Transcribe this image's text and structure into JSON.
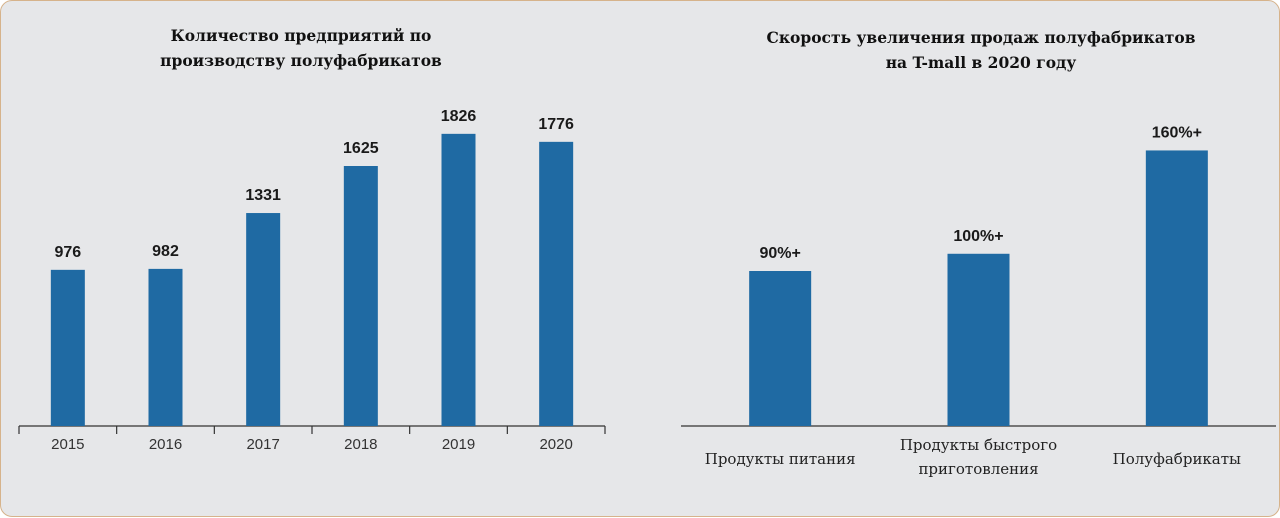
{
  "chart_data": [
    {
      "type": "bar",
      "title": "Количество предприятий по\nпроизводству полуфабрикатов",
      "categories": [
        "2015",
        "2016",
        "2017",
        "2018",
        "2019",
        "2020"
      ],
      "values": [
        976,
        982,
        1331,
        1625,
        1826,
        1776
      ],
      "value_labels": [
        "976",
        "982",
        "1331",
        "1625",
        "1826",
        "1776"
      ],
      "ylim": [
        0,
        2000
      ],
      "grid": false,
      "color": "#1f6aa3"
    },
    {
      "type": "bar",
      "title": "Скорость увеличения продаж полуфабрикатов\nна T-mall в 2020 году",
      "categories": [
        "Продукты питания",
        "Продукты быстрого\nприготовления",
        "Полуфабрикаты"
      ],
      "values": [
        90,
        100,
        160
      ],
      "value_labels": [
        "90%+",
        "100%+",
        "160%+"
      ],
      "ylim": [
        0,
        180
      ],
      "grid": false,
      "color": "#1f6aa3"
    }
  ]
}
